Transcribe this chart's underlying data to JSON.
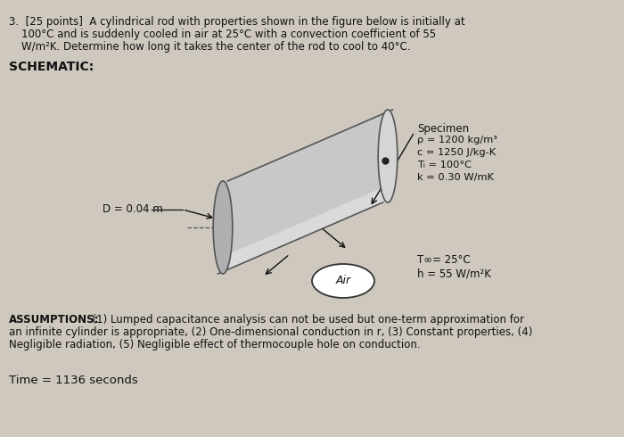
{
  "bg_color": "#cec8bf",
  "text_color": "#111111",
  "problem_line1": "3.  [25 points]  A cylindrical rod with properties shown in the figure below is initially at",
  "problem_line2": "100°C and is suddenly cooled in air at 25°C with a convection coefficient of 55",
  "problem_line3": "W/m²K. Determine how long it takes the center of the rod to cool to 40°C.",
  "schematic_label": "SCHEMATIC:",
  "D_label": "D = 0.04 m",
  "specimen_label": "Specimen",
  "rho_label": "ρ = 1200 kg/m³",
  "c_label": "c = 1250 J/kg-K",
  "Ti_label": "Tᵢ = 100°C",
  "k_label": "k = 0.30 W/mK",
  "Tinf_label": "T∞= 25°C",
  "h_label": "h = 55 W/m²K",
  "air_label": "Air",
  "assumptions_bold": "ASSUMPTIONS:",
  "assumptions_line1": "  (1) Lumped capacitance analysis can not be used but one-term approximation for",
  "assumptions_line2": "an infinite cylinder is appropriate, (2) One-dimensional conduction in r, (3) Constant properties, (4)",
  "assumptions_line3": "Negligible radiation, (5) Negligible effect of thermocouple hole on conduction.",
  "time_label": "Time = 1136 seconds",
  "cyl_body_color": "#c8c8c8",
  "cyl_top_color": "#e2e2e2",
  "cyl_face_color": "#d5d5d5",
  "cyl_edge_color": "#555555"
}
